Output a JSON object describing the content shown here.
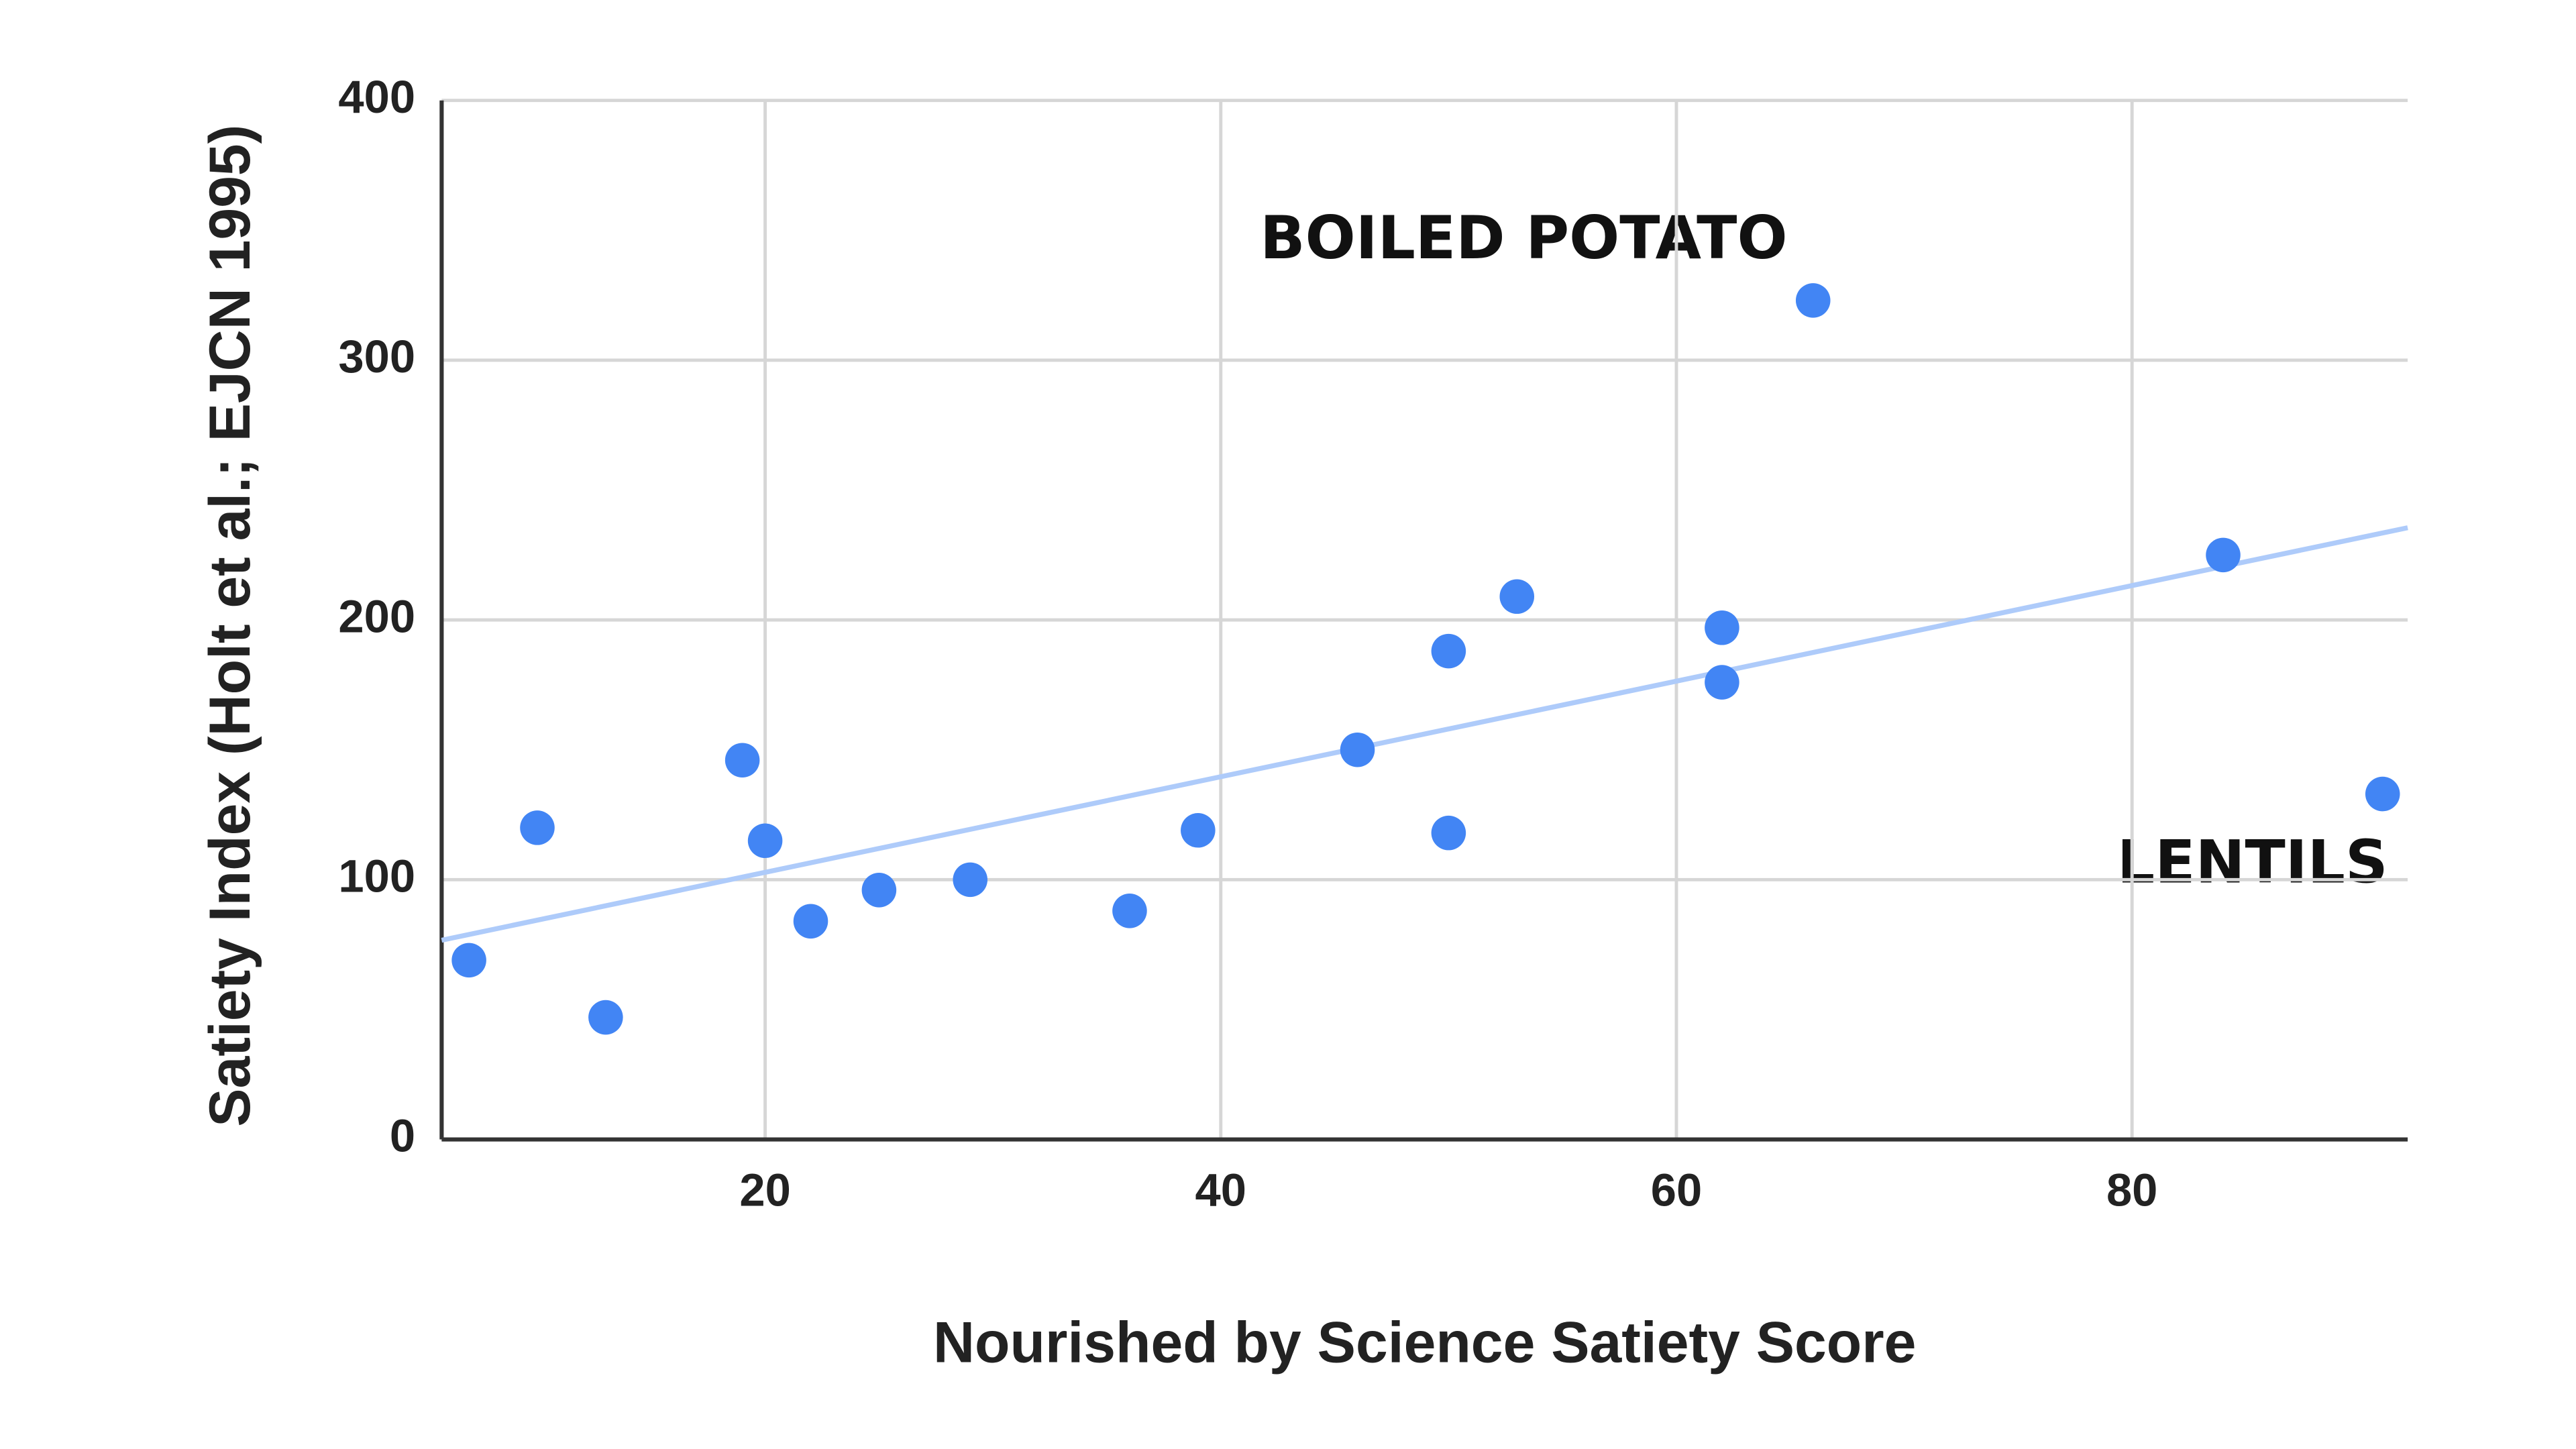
{
  "chart_data": {
    "type": "scatter",
    "x_label": "Nourished by Science Satiety Score",
    "y_label": "Satiety Index (Holt et al.; EJCN 1995)",
    "xlim": [
      5.8,
      92.1
    ],
    "ylim": [
      0,
      400
    ],
    "xticks": [
      20,
      40,
      60,
      80
    ],
    "yticks": [
      0,
      100,
      200,
      300,
      400
    ],
    "grid": true,
    "series": [
      {
        "color": "#4285f4",
        "x": [
          7,
          10,
          13,
          19,
          20,
          22,
          25,
          29,
          36,
          39,
          46,
          50,
          50,
          53,
          62,
          62,
          66,
          84,
          91
        ],
        "values": [
          69,
          120,
          47,
          146,
          115,
          84,
          96,
          100,
          88,
          119,
          150,
          188,
          118,
          209,
          197,
          176,
          323,
          225,
          133
        ]
      }
    ],
    "trendline": {
      "color": "#aecbfa",
      "x": [
        5.8,
        92.1
      ],
      "values": [
        76.7,
        235.5
      ]
    },
    "annotations": [
      "BOILED POTATO",
      "LENTILS"
    ]
  }
}
